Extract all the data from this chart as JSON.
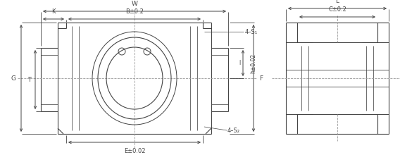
{
  "bg_color": "#ffffff",
  "line_color": "#444444",
  "dim_color": "#444444",
  "center_line_color": "#999999",
  "fig_width": 5.68,
  "fig_height": 2.2,
  "dpi": 100,
  "labels": {
    "W": "W",
    "B": "B±0.2",
    "K": "K",
    "T": "T",
    "G": "G",
    "E": "E±0.02",
    "h": "h±0.02",
    "l": "l",
    "F": "F",
    "S1": "4–S₁",
    "S2": "4–S₂",
    "L": "L",
    "C": "C±0.2"
  },
  "font_size": 6.5
}
